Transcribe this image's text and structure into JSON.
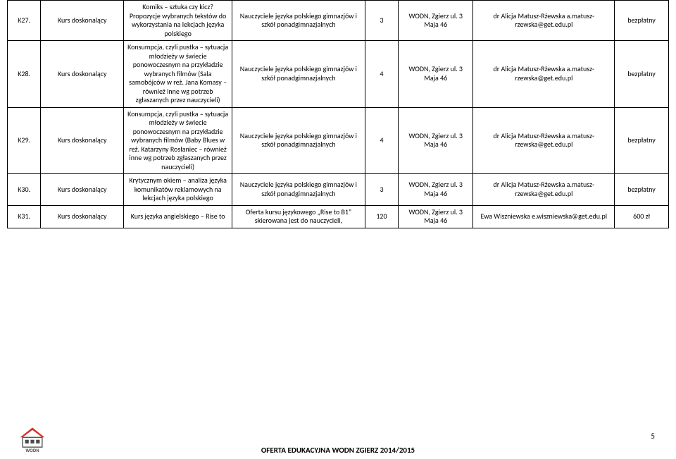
{
  "rows": [
    {
      "code": "K27.",
      "type": "Kurs doskonalący",
      "desc": "Komiks – sztuka czy kicz? Propozycje wybranych tekstów do wykorzystania na lekcjach języka polskiego",
      "target": "Nauczyciele języka polskiego gimnazjów i szkół ponadgimnazjalnych",
      "hours": "3",
      "loc": "WODN, Zgierz ul. 3 Maja 46",
      "contact": "dr Alicja Matusz-Rżewska a.matusz-rzewska@get.edu.pl",
      "price": "bezpłatny"
    },
    {
      "code": "K28.",
      "type": "Kurs doskonalący",
      "desc": "Konsumpcja, czyli pustka – sytuacja młodzieży w świecie ponowoczesnym na przykładzie wybranych filmów (Sala samobójców w reż. Jana Komasy – również inne wg potrzeb zgłaszanych przez nauczycieli)",
      "target": "Nauczyciele języka polskiego gimnazjów i szkół ponadgimnazjalnych",
      "hours": "4",
      "loc": "WODN, Zgierz ul. 3 Maja 46",
      "contact": "dr Alicja Matusz-Rżewska a.matusz-rzewska@get.edu.pl",
      "price": "bezpłatny"
    },
    {
      "code": "K29.",
      "type": "Kurs doskonalący",
      "desc": "Konsumpcja, czyli pustka – sytuacja młodzieży w świecie ponowoczesnym na przykładzie wybranych filmów (Baby Blues w reż. Katarzyny Rosłaniec – również inne wg potrzeb zgłaszanych przez nauczycieli)",
      "target": "Nauczyciele języka polskiego gimnazjów i szkół ponadgimnazjalnych",
      "hours": "4",
      "loc": "WODN, Zgierz ul. 3 Maja 46",
      "contact": "dr Alicja Matusz-Rżewska a.matusz-rzewska@get.edu.pl",
      "price": "bezpłatny"
    },
    {
      "code": "K30.",
      "type": "Kurs doskonalący",
      "desc": "Krytycznym okiem – analiza języka komunikatów reklamowych na lekcjach języka polskiego",
      "target": "Nauczyciele języka polskiego gimnazjów i szkół ponadgimnazjalnych",
      "hours": "3",
      "loc": "WODN, Zgierz ul. 3 Maja 46",
      "contact": "dr Alicja Matusz-Rżewska a.matusz-rzewska@get.edu.pl",
      "price": "bezpłatny"
    },
    {
      "code": "K31.",
      "type": "Kurs doskonalący",
      "desc": "Kurs języka angielskiego – Rise to",
      "target": "Oferta kursu językowego „Rise to B1\" skierowana jest do nauczycieli,",
      "hours": "120",
      "loc": "WODN, Zgierz ul. 3 Maja 46",
      "contact": "Ewa Wiszniewska e.wiszniewska@get.edu.pl",
      "price": "600 zł"
    }
  ],
  "footer_title": "OFERTA EDUKACYJNA WODN ZGIERZ 2014/2015",
  "page_number": "5",
  "colors": {
    "border": "#000000",
    "text": "#000000",
    "logo_roof": "#d9322a",
    "logo_body": "#4a4a4a",
    "logo_text": "#4a4a4a"
  }
}
